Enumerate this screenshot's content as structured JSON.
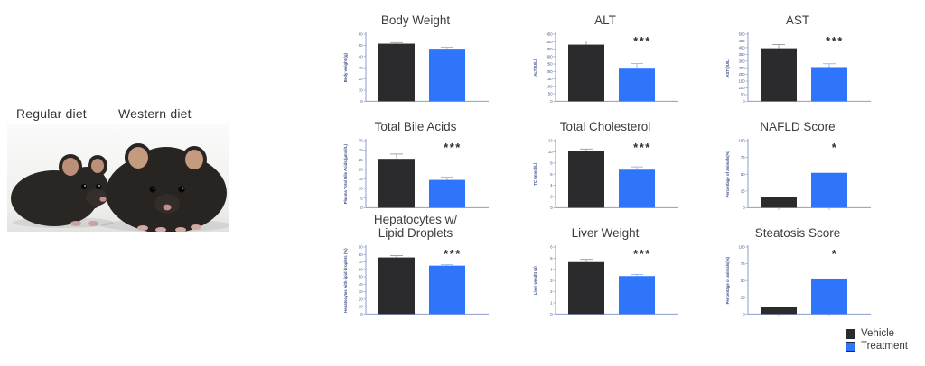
{
  "photo_panel": {
    "left_label": "Regular diet",
    "right_label": "Western diet"
  },
  "colors": {
    "vehicle": "#2b2b2e",
    "treatment": "#2e75fb",
    "axis": "#8b9dc9",
    "tick_text": "#3c4f8a",
    "error_vehicle": "#9a9a9a",
    "error_treatment": "#8fb3fa",
    "significance": "#2f2f2f"
  },
  "legend": {
    "items": [
      {
        "label": "Vehicle",
        "color": "#2b2b2e"
      },
      {
        "label": "Treatment",
        "color": "#2e75fb"
      }
    ]
  },
  "chart_data": [
    {
      "type": "bar",
      "title": "Body Weight",
      "ylabel": "Body weight (g)",
      "categories": [
        "Vehicle",
        "Treatment"
      ],
      "values": [
        51.5,
        47
      ],
      "errors": [
        1,
        1.3
      ],
      "significance": "",
      "ylim": [
        0,
        60
      ],
      "ytick_step": 10,
      "x_ticks": false,
      "grid": false,
      "legend_position": "none"
    },
    {
      "type": "bar",
      "title": "ALT",
      "ylabel": "ALT(IU/L)",
      "categories": [
        "Vehicle",
        "Treatment"
      ],
      "values": [
        380,
        225
      ],
      "errors": [
        25,
        28
      ],
      "significance": "***",
      "ylim": [
        0,
        450
      ],
      "ytick_step": 50,
      "x_ticks": false,
      "grid": false,
      "legend_position": "none"
    },
    {
      "type": "bar",
      "title": "AST",
      "ylabel": "AST (IU/L)",
      "categories": [
        "Vehicle",
        "Treatment"
      ],
      "values": [
        395,
        255
      ],
      "errors": [
        28,
        25
      ],
      "significance": "***",
      "ylim": [
        0,
        500
      ],
      "ytick_step": 50,
      "x_ticks": false,
      "grid": false,
      "legend_position": "none"
    },
    {
      "type": "bar",
      "title": "Total Bile Acids",
      "ylabel": "Plasma Total Bile Acids (μmol/L)",
      "categories": [
        "Vehicle",
        "Treatment"
      ],
      "values": [
        25.5,
        14.5
      ],
      "errors": [
        2.5,
        1.5
      ],
      "significance": "***",
      "ylim": [
        0,
        35
      ],
      "ytick_step": 5,
      "x_ticks": false,
      "grid": false,
      "legend_position": "none"
    },
    {
      "type": "bar",
      "title": "Total Cholesterol",
      "ylabel": "TC (mmol/L)",
      "categories": [
        "Vehicle",
        "Treatment"
      ],
      "values": [
        10.1,
        6.8
      ],
      "errors": [
        0.4,
        0.5
      ],
      "significance": "***",
      "ylim": [
        0,
        12
      ],
      "ytick_step": 2,
      "x_ticks": false,
      "grid": false,
      "legend_position": "none"
    },
    {
      "type": "bar",
      "title": "NAFLD Score",
      "ylabel": "Percentage of animals(%)",
      "categories": [
        "Vehicle",
        "Treatment"
      ],
      "values": [
        16,
        52
      ],
      "errors": [
        0,
        0
      ],
      "significance": "*",
      "ylim": [
        0,
        100
      ],
      "ytick_step": 25,
      "x_ticks": true,
      "grid": false,
      "legend_position": "none"
    },
    {
      "type": "bar",
      "title": "Hepatocytes w/\nLipid Droplets",
      "ylabel": "Hepatocytes with lipid droplets (%)",
      "categories": [
        "Vehicle",
        "Treatment"
      ],
      "values": [
        76,
        65
      ],
      "errors": [
        2.5,
        1.2
      ],
      "significance": "***",
      "ylim": [
        0,
        90
      ],
      "ytick_step": 10,
      "x_ticks": false,
      "grid": false,
      "legend_position": "none"
    },
    {
      "type": "bar",
      "title": "Liver Weight",
      "ylabel": "Liver weight (g)",
      "categories": [
        "Vehicle",
        "Treatment"
      ],
      "values": [
        4.65,
        3.4
      ],
      "errors": [
        0.25,
        0.15
      ],
      "significance": "***",
      "ylim": [
        0,
        6
      ],
      "ytick_step": 1,
      "x_ticks": false,
      "grid": false,
      "legend_position": "none"
    },
    {
      "type": "bar",
      "title": "Steatosis Score",
      "ylabel": "Percentage of animals(%)",
      "categories": [
        "Vehicle",
        "Treatment"
      ],
      "values": [
        10,
        53
      ],
      "errors": [
        0,
        0
      ],
      "significance": "*",
      "ylim": [
        0,
        100
      ],
      "ytick_step": 25,
      "x_ticks": true,
      "grid": false,
      "legend_position": "none"
    }
  ]
}
